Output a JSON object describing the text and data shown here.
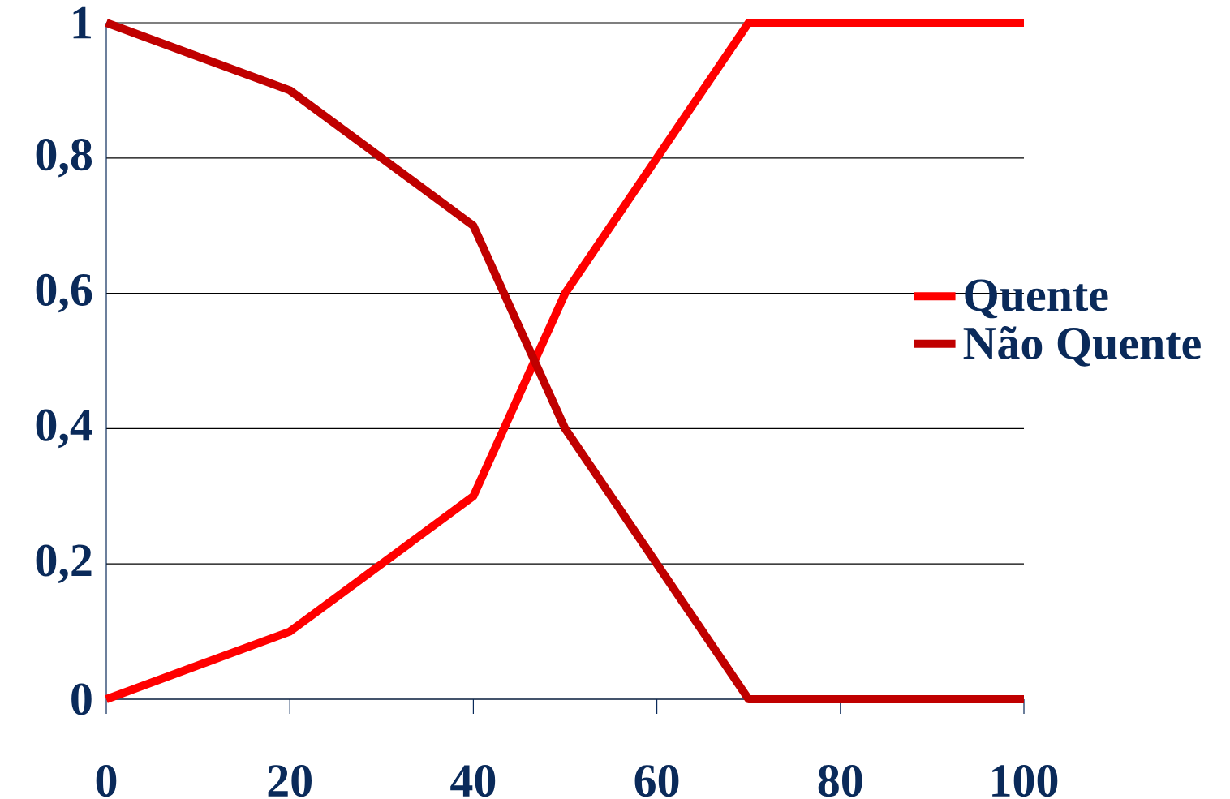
{
  "chart_data": {
    "type": "line",
    "x": [
      0,
      20,
      40,
      50,
      70,
      100
    ],
    "series": [
      {
        "name": "Quente",
        "color": "#ff0000",
        "values": [
          0,
          0.1,
          0.3,
          0.6,
          1,
          1
        ]
      },
      {
        "name": "Não Quente",
        "color": "#c00000",
        "values": [
          1,
          0.9,
          0.7,
          0.4,
          0,
          0
        ]
      }
    ],
    "xlim": [
      0,
      100
    ],
    "ylim": [
      0,
      1
    ],
    "xticks": [
      0,
      20,
      40,
      60,
      80,
      100
    ],
    "yticks": [
      0,
      {
        "value": 0.2,
        "label": "0,2"
      },
      {
        "value": 0.4,
        "label": "0,4"
      },
      {
        "value": 0.6,
        "label": "0,6"
      },
      {
        "value": 0.8,
        "label": "0,8"
      },
      1
    ],
    "grid": "y",
    "legend": "right",
    "marker": "none",
    "line_style": "solid"
  }
}
